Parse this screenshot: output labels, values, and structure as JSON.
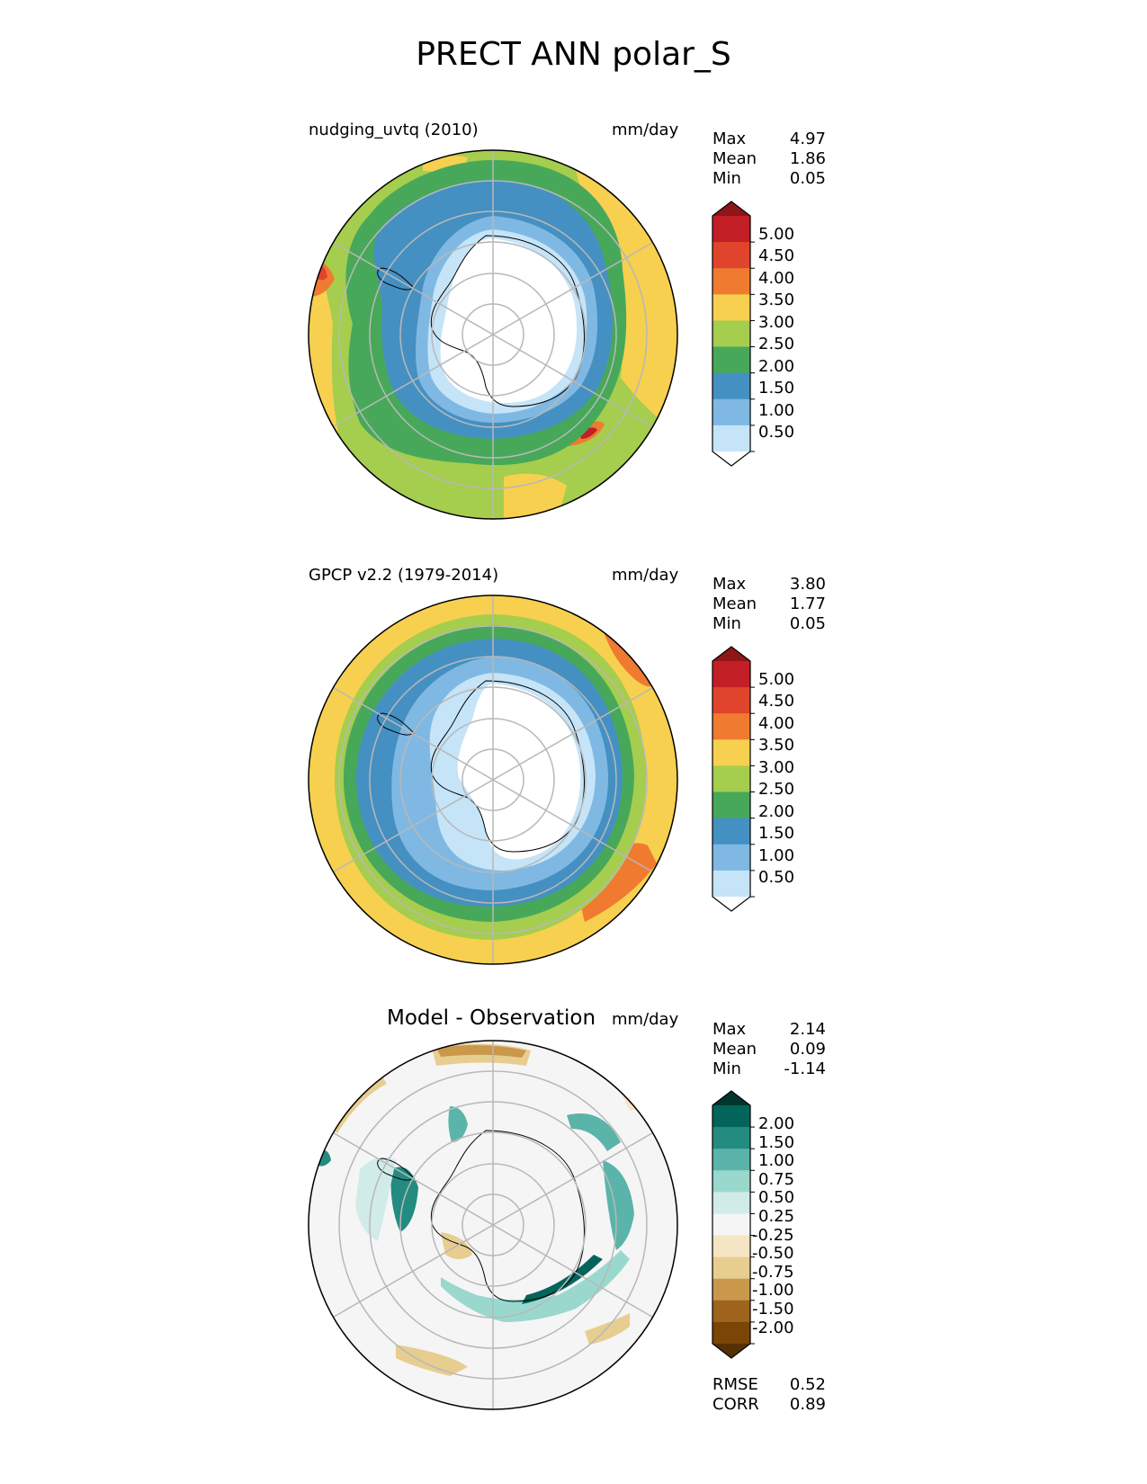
{
  "title": "PRECT ANN polar_S",
  "panels": [
    {
      "id": "test",
      "title": "nudging_uvtq (2010)",
      "units": "mm/day",
      "stats": [
        {
          "label": "Max",
          "value": "4.97"
        },
        {
          "label": "Mean",
          "value": "1.86"
        },
        {
          "label": "Min",
          "value": "0.05"
        }
      ],
      "colorbar": {
        "labels": [
          "5.00",
          "4.50",
          "4.00",
          "3.50",
          "3.00",
          "2.50",
          "2.00",
          "1.50",
          "1.00",
          "0.50"
        ],
        "colors": [
          "#8e1518",
          "#c21f26",
          "#e1442c",
          "#f07a30",
          "#f7d04f",
          "#a5cd4e",
          "#47a85a",
          "#4590c2",
          "#7fb9e3",
          "#c5e4f8",
          "#ffffff"
        ]
      }
    },
    {
      "id": "ref",
      "title": "GPCP v2.2 (1979-2014)",
      "units": "mm/day",
      "stats": [
        {
          "label": "Max",
          "value": "3.80"
        },
        {
          "label": "Mean",
          "value": "1.77"
        },
        {
          "label": "Min",
          "value": "0.05"
        }
      ],
      "colorbar": {
        "labels": [
          "5.00",
          "4.50",
          "4.00",
          "3.50",
          "3.00",
          "2.50",
          "2.00",
          "1.50",
          "1.00",
          "0.50"
        ],
        "colors": [
          "#8e1518",
          "#c21f26",
          "#e1442c",
          "#f07a30",
          "#f7d04f",
          "#a5cd4e",
          "#47a85a",
          "#4590c2",
          "#7fb9e3",
          "#c5e4f8",
          "#ffffff"
        ]
      }
    },
    {
      "id": "diff",
      "title": "Model - Observation",
      "units": "mm/day",
      "stats": [
        {
          "label": "Max",
          "value": "2.14"
        },
        {
          "label": "Mean",
          "value": "0.09"
        },
        {
          "label": "Min",
          "value": "-1.14"
        }
      ],
      "extra_stats": [
        {
          "label": "RMSE",
          "value": "0.52"
        },
        {
          "label": "CORR",
          "value": "0.89"
        }
      ],
      "colorbar": {
        "labels": [
          "2.00",
          "1.50",
          "1.00",
          "0.75",
          "0.50",
          "0.25",
          "-0.25",
          "-0.50",
          "-0.75",
          "-1.00",
          "-1.50",
          "-2.00"
        ],
        "colors": [
          "#00362d",
          "#02645a",
          "#238b80",
          "#5ab4a9",
          "#9ad8ce",
          "#d1ece8",
          "#f5f5f5",
          "#f5e6c3",
          "#e7cd8f",
          "#c9984b",
          "#a0631d",
          "#7b4507",
          "#543005"
        ]
      }
    }
  ],
  "chart_data": [
    {
      "type": "heatmap",
      "title": "nudging_uvtq (2010)",
      "units": "mm/day",
      "projection": "polar_S",
      "levels": [
        0.5,
        1.0,
        1.5,
        2.0,
        2.5,
        3.0,
        3.5,
        4.0,
        4.5,
        5.0
      ],
      "max": 4.97,
      "mean": 1.86,
      "min": 0.05
    },
    {
      "type": "heatmap",
      "title": "GPCP v2.2 (1979-2014)",
      "units": "mm/day",
      "projection": "polar_S",
      "levels": [
        0.5,
        1.0,
        1.5,
        2.0,
        2.5,
        3.0,
        3.5,
        4.0,
        4.5,
        5.0
      ],
      "max": 3.8,
      "mean": 1.77,
      "min": 0.05
    },
    {
      "type": "heatmap",
      "title": "Model - Observation",
      "units": "mm/day",
      "projection": "polar_S",
      "levels": [
        -2.0,
        -1.5,
        -1.0,
        -0.75,
        -0.5,
        -0.25,
        0.25,
        0.5,
        0.75,
        1.0,
        1.5,
        2.0
      ],
      "max": 2.14,
      "mean": 0.09,
      "min": -1.14,
      "rmse": 0.52,
      "corr": 0.89
    }
  ]
}
